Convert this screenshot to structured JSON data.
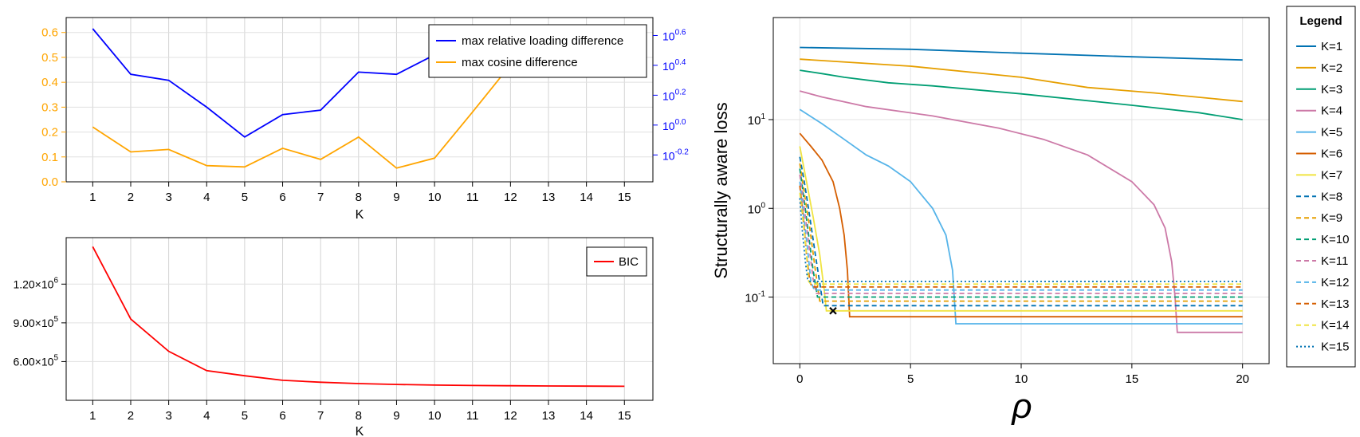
{
  "chart_data": [
    {
      "type": "line",
      "title": "",
      "xlabel": "K",
      "x": [
        1,
        2,
        3,
        4,
        5,
        6,
        7,
        8,
        9,
        10,
        11,
        12,
        13,
        14,
        15
      ],
      "xlim": [
        0.3,
        15.75
      ],
      "x_ticks": [
        "1",
        "2",
        "3",
        "4",
        "5",
        "6",
        "7",
        "8",
        "9",
        "10",
        "11",
        "12",
        "13",
        "14",
        "15"
      ],
      "left_axis": {
        "ylim": [
          0,
          0.66
        ],
        "ticks": [
          "0.0",
          "0.1",
          "0.2",
          "0.3",
          "0.4",
          "0.5",
          "0.6"
        ],
        "tick_values": [
          0,
          0.1,
          0.2,
          0.3,
          0.4,
          0.5,
          0.6
        ],
        "color": "#FFA500"
      },
      "right_axis": {
        "scale": "log10",
        "ticks": [
          "10^-0.2",
          "10^0.0",
          "10^0.2",
          "10^0.4",
          "10^0.6"
        ],
        "tick_exponents": [
          -0.2,
          0.0,
          0.2,
          0.4,
          0.6
        ],
        "range_exponent": [
          -0.38,
          0.72
        ],
        "color": "#0000FF"
      },
      "series": [
        {
          "name": "max relative loading difference",
          "axis": "right",
          "color": "#0000FF",
          "values": [
            0.645,
            0.34,
            0.3,
            0.12,
            -0.08,
            0.07,
            0.1,
            0.355,
            0.34,
            0.47,
            null,
            null,
            null,
            null,
            null
          ]
        },
        {
          "name": "max cosine difference",
          "axis": "left",
          "color": "#FFA500",
          "values": [
            0.22,
            0.12,
            0.13,
            0.065,
            0.06,
            0.135,
            0.09,
            0.18,
            0.055,
            0.095,
            0.28,
            0.47,
            null,
            null,
            null
          ]
        }
      ],
      "legend_position": "top-right",
      "grid": true
    },
    {
      "type": "line",
      "title": "",
      "xlabel": "K",
      "x": [
        1,
        2,
        3,
        4,
        5,
        6,
        7,
        8,
        9,
        10,
        11,
        12,
        13,
        14,
        15
      ],
      "xlim": [
        0.3,
        15.75
      ],
      "x_ticks": [
        "1",
        "2",
        "3",
        "4",
        "5",
        "6",
        "7",
        "8",
        "9",
        "10",
        "11",
        "12",
        "13",
        "14",
        "15"
      ],
      "ylim": [
        300000,
        1560000
      ],
      "y_ticks": [
        {
          "value": 600000,
          "mantissa": "6.00",
          "exp": "5"
        },
        {
          "value": 900000,
          "mantissa": "9.00",
          "exp": "5"
        },
        {
          "value": 1200000,
          "mantissa": "1.20",
          "exp": "6"
        }
      ],
      "times_sign": "×10",
      "series": [
        {
          "name": "BIC",
          "color": "#FF0000",
          "values": [
            1490000,
            930000,
            680000,
            530000,
            490000,
            455000,
            440000,
            430000,
            423000,
            418000,
            415000,
            413000,
            411000,
            410000,
            409000
          ]
        }
      ],
      "legend_position": "top-right",
      "grid": true
    },
    {
      "type": "line",
      "title": "",
      "xlabel": "ρ",
      "ylabel": "Structurally aware loss",
      "xlim": [
        -1.2,
        21.2
      ],
      "x_ticks": [
        0,
        5,
        10,
        15,
        20
      ],
      "y_scale": "log10",
      "ylim_exponent": [
        -1.75,
        2.15
      ],
      "y_ticks": [
        {
          "mantissa": "10",
          "exp": "-1",
          "exponent": -1
        },
        {
          "mantissa": "10",
          "exp": "0",
          "exponent": 0
        },
        {
          "mantissa": "10",
          "exp": "1",
          "exponent": 1
        }
      ],
      "legend_title": "Legend",
      "legend_position": "outside-right",
      "grid": true,
      "series": [
        {
          "name": "K=1",
          "color": "#0072B2",
          "dash": "solid",
          "points": [
            [
              0,
              65
            ],
            [
              5,
              62
            ],
            [
              10,
              56
            ],
            [
              15,
              51
            ],
            [
              20,
              47
            ]
          ]
        },
        {
          "name": "K=2",
          "color": "#E69F00",
          "dash": "solid",
          "points": [
            [
              0,
              48
            ],
            [
              5,
              40
            ],
            [
              10,
              30
            ],
            [
              13,
              23
            ],
            [
              16,
              20
            ],
            [
              20,
              16
            ]
          ]
        },
        {
          "name": "K=3",
          "color": "#009E73",
          "dash": "solid",
          "points": [
            [
              0,
              36
            ],
            [
              1,
              33
            ],
            [
              2,
              30
            ],
            [
              4,
              26
            ],
            [
              6,
              24
            ],
            [
              10,
              19.5
            ],
            [
              15,
              14.5
            ],
            [
              18,
              12
            ],
            [
              20,
              10
            ]
          ]
        },
        {
          "name": "K=4",
          "color": "#CC79A7",
          "dash": "solid",
          "points": [
            [
              0,
              21
            ],
            [
              1,
              18
            ],
            [
              3,
              14
            ],
            [
              6,
              11
            ],
            [
              9,
              8
            ],
            [
              11,
              6
            ],
            [
              13,
              4
            ],
            [
              15,
              2
            ],
            [
              16,
              1.1
            ],
            [
              16.5,
              0.6
            ],
            [
              16.8,
              0.25
            ],
            [
              16.95,
              0.1
            ],
            [
              17.05,
              0.04
            ],
            [
              20,
              0.04
            ]
          ]
        },
        {
          "name": "K=5",
          "color": "#56B4E9",
          "dash": "solid",
          "points": [
            [
              0,
              13
            ],
            [
              1,
              9
            ],
            [
              2,
              6
            ],
            [
              3,
              4
            ],
            [
              4,
              3
            ],
            [
              5,
              2
            ],
            [
              6,
              1
            ],
            [
              6.6,
              0.5
            ],
            [
              6.9,
              0.2
            ],
            [
              7.05,
              0.05
            ],
            [
              20,
              0.05
            ]
          ]
        },
        {
          "name": "K=6",
          "color": "#D55E00",
          "dash": "solid",
          "points": [
            [
              0,
              7
            ],
            [
              0.5,
              5
            ],
            [
              1,
              3.5
            ],
            [
              1.5,
              2
            ],
            [
              1.8,
              1
            ],
            [
              2,
              0.5
            ],
            [
              2.15,
              0.2
            ],
            [
              2.25,
              0.06
            ],
            [
              20,
              0.06
            ]
          ]
        },
        {
          "name": "K=7",
          "color": "#F0E442",
          "dash": "solid",
          "points": [
            [
              0,
              5
            ],
            [
              0.3,
              2
            ],
            [
              0.6,
              0.8
            ],
            [
              0.9,
              0.3
            ],
            [
              1.1,
              0.12
            ],
            [
              1.2,
              0.07
            ],
            [
              20,
              0.07
            ]
          ]
        },
        {
          "name": "K=8",
          "color": "#0072B2",
          "dash": "dashed",
          "points": [
            [
              0,
              3.8
            ],
            [
              0.2,
              2
            ],
            [
              0.45,
              0.8
            ],
            [
              0.7,
              0.3
            ],
            [
              0.95,
              0.12
            ],
            [
              1.05,
              0.08
            ],
            [
              20,
              0.08
            ]
          ]
        },
        {
          "name": "K=9",
          "color": "#E69F00",
          "dash": "dashed",
          "points": [
            [
              0,
              3.2
            ],
            [
              0.2,
              1.5
            ],
            [
              0.45,
              0.6
            ],
            [
              0.7,
              0.2
            ],
            [
              0.9,
              0.09
            ],
            [
              20,
              0.09
            ]
          ]
        },
        {
          "name": "K=10",
          "color": "#009E73",
          "dash": "dashed",
          "points": [
            [
              0,
              2.8
            ],
            [
              0.2,
              1.2
            ],
            [
              0.4,
              0.5
            ],
            [
              0.6,
              0.2
            ],
            [
              0.8,
              0.1
            ],
            [
              20,
              0.1
            ]
          ]
        },
        {
          "name": "K=11",
          "color": "#CC79A7",
          "dash": "dashed",
          "points": [
            [
              0,
              2.4
            ],
            [
              0.2,
              1.0
            ],
            [
              0.4,
              0.4
            ],
            [
              0.6,
              0.16
            ],
            [
              0.75,
              0.11
            ],
            [
              20,
              0.11
            ]
          ]
        },
        {
          "name": "K=12",
          "color": "#56B4E9",
          "dash": "dashed",
          "points": [
            [
              0,
              2.0
            ],
            [
              0.15,
              0.9
            ],
            [
              0.35,
              0.35
            ],
            [
              0.5,
              0.15
            ],
            [
              0.65,
              0.12
            ],
            [
              20,
              0.12
            ]
          ]
        },
        {
          "name": "K=13",
          "color": "#D55E00",
          "dash": "dashed",
          "points": [
            [
              0,
              1.8
            ],
            [
              0.15,
              0.8
            ],
            [
              0.3,
              0.3
            ],
            [
              0.45,
              0.15
            ],
            [
              0.55,
              0.13
            ],
            [
              20,
              0.13
            ]
          ]
        },
        {
          "name": "K=14",
          "color": "#F0E442",
          "dash": "dashed",
          "points": [
            [
              0,
              1.5
            ],
            [
              0.15,
              0.7
            ],
            [
              0.3,
              0.3
            ],
            [
              0.4,
              0.15
            ],
            [
              0.5,
              0.14
            ],
            [
              20,
              0.14
            ]
          ]
        },
        {
          "name": "K=15",
          "color": "#0072B2",
          "dash": "dotted",
          "points": [
            [
              0,
              1.3
            ],
            [
              0.1,
              0.6
            ],
            [
              0.25,
              0.25
            ],
            [
              0.35,
              0.16
            ],
            [
              0.45,
              0.15
            ],
            [
              20,
              0.15
            ]
          ]
        }
      ],
      "marker": {
        "shape": "x",
        "x": 1.5,
        "y": 0.07,
        "color": "#000000"
      }
    }
  ]
}
